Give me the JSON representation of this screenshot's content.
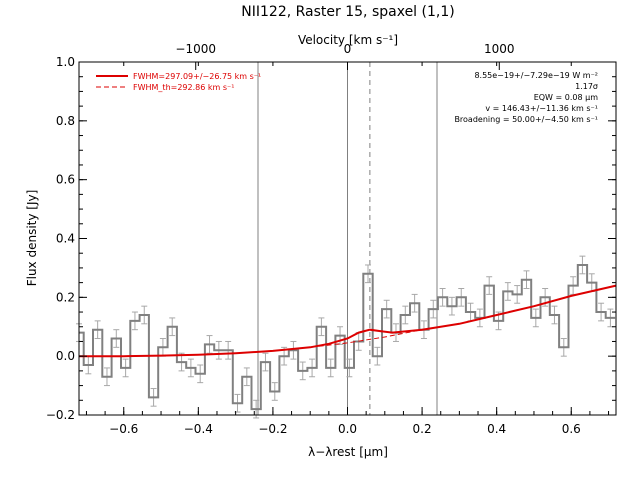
{
  "colors": {
    "background": "#ffffff",
    "axes": "#000000",
    "data": "#808080",
    "model": "#dd0000",
    "errorbars": "#a8a8a8",
    "vlines": "#808080"
  },
  "chart_data": {
    "type": "line",
    "title": "NII122, Raster 15, spaxel (1,1)",
    "xlabel": "λ−λrest [μm]",
    "ylabel": "Flux density [Jy]",
    "top_axis_label": "Velocity [km s⁻¹]",
    "xlim": [
      -0.72,
      0.72
    ],
    "ylim": [
      -0.2,
      1.0
    ],
    "top_axis_ticks": [
      {
        "value": -1000,
        "label": "−1000",
        "wavelength": -0.407
      },
      {
        "value": 0,
        "label": "0",
        "wavelength": 0.0
      },
      {
        "value": 1000,
        "label": "1000",
        "wavelength": 0.407
      }
    ],
    "x_ticks": [
      {
        "value": -0.6,
        "label": "−0.6"
      },
      {
        "value": -0.4,
        "label": "−0.4"
      },
      {
        "value": -0.2,
        "label": "−0.2"
      },
      {
        "value": 0.0,
        "label": "0.0"
      },
      {
        "value": 0.2,
        "label": "0.2"
      },
      {
        "value": 0.4,
        "label": "0.4"
      },
      {
        "value": 0.6,
        "label": "0.6"
      }
    ],
    "y_ticks": [
      {
        "value": -0.2,
        "label": "−0.2"
      },
      {
        "value": 0.0,
        "label": "0.0"
      },
      {
        "value": 0.2,
        "label": "0.2"
      },
      {
        "value": 0.4,
        "label": "0.4"
      },
      {
        "value": 0.6,
        "label": "0.6"
      },
      {
        "value": 0.8,
        "label": "0.8"
      },
      {
        "value": 1.0,
        "label": "1.0"
      }
    ],
    "vlines_solid": [
      -0.24,
      0.0,
      0.24
    ],
    "vlines_dashed": [
      0.06
    ],
    "legend": {
      "placement": "top-left",
      "entries": [
        {
          "label": "FWHM=297.09+/−26.75 km s⁻¹",
          "style": "solid"
        },
        {
          "label": "FWHM_th=292.86 km s⁻¹",
          "style": "dashed"
        }
      ]
    },
    "annotations": [
      "8.55e−19+/−7.29e−19 W m⁻²",
      "1.17σ",
      "EQW = 0.08 μm",
      "v = 146.43+/−11.36 km s⁻¹",
      "Broadening = 50.00+/−4.50 km s⁻¹"
    ],
    "spectrum": {
      "x": [
        -0.72,
        -0.695,
        -0.67,
        -0.645,
        -0.62,
        -0.595,
        -0.57,
        -0.545,
        -0.52,
        -0.495,
        -0.47,
        -0.445,
        -0.42,
        -0.395,
        -0.37,
        -0.345,
        -0.32,
        -0.295,
        -0.27,
        -0.245,
        -0.22,
        -0.195,
        -0.17,
        -0.145,
        -0.12,
        -0.095,
        -0.07,
        -0.045,
        -0.02,
        0.005,
        0.03,
        0.055,
        0.08,
        0.105,
        0.13,
        0.155,
        0.18,
        0.205,
        0.23,
        0.255,
        0.28,
        0.305,
        0.33,
        0.355,
        0.38,
        0.405,
        0.43,
        0.455,
        0.48,
        0.505,
        0.53,
        0.555,
        0.58,
        0.605,
        0.63,
        0.655,
        0.68,
        0.705
      ],
      "y": [
        0.08,
        -0.03,
        0.09,
        -0.07,
        0.06,
        -0.04,
        0.12,
        0.14,
        -0.14,
        0.03,
        0.1,
        -0.02,
        -0.04,
        -0.06,
        0.04,
        0.02,
        0.02,
        -0.16,
        -0.07,
        -0.18,
        -0.02,
        -0.12,
        0.0,
        0.02,
        -0.05,
        -0.04,
        0.1,
        -0.04,
        0.07,
        -0.04,
        0.05,
        0.28,
        0.0,
        0.16,
        0.08,
        0.14,
        0.18,
        0.09,
        0.16,
        0.2,
        0.17,
        0.2,
        0.15,
        0.13,
        0.24,
        0.12,
        0.22,
        0.21,
        0.26,
        0.13,
        0.2,
        0.14,
        0.03,
        0.24,
        0.31,
        0.25,
        0.15,
        0.13
      ],
      "yerr": 0.03
    },
    "model": {
      "x": [
        -0.72,
        -0.6,
        -0.5,
        -0.4,
        -0.3,
        -0.2,
        -0.1,
        -0.05,
        0.0,
        0.03,
        0.06,
        0.09,
        0.12,
        0.2,
        0.3,
        0.4,
        0.5,
        0.6,
        0.72
      ],
      "y": [
        0.0,
        0.0,
        0.002,
        0.005,
        0.01,
        0.018,
        0.03,
        0.042,
        0.06,
        0.08,
        0.09,
        0.085,
        0.08,
        0.09,
        0.11,
        0.14,
        0.17,
        0.205,
        0.24
      ]
    },
    "continuum": {
      "x": [
        -0.72,
        -0.6,
        -0.5,
        -0.4,
        -0.3,
        -0.2,
        -0.1,
        0.0,
        0.1,
        0.2,
        0.3,
        0.4,
        0.5,
        0.6,
        0.72
      ],
      "y": [
        0.0,
        0.0,
        0.002,
        0.005,
        0.01,
        0.018,
        0.03,
        0.045,
        0.065,
        0.09,
        0.11,
        0.14,
        0.17,
        0.205,
        0.24
      ]
    }
  }
}
